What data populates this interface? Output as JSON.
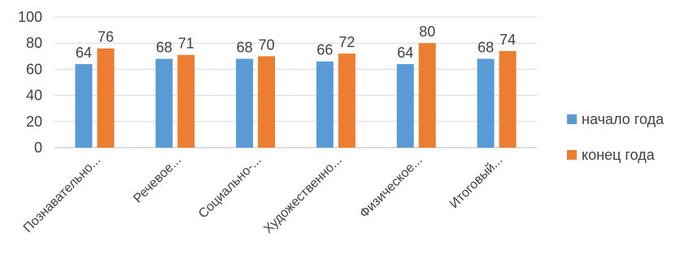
{
  "chart_data": {
    "type": "bar",
    "categories": [
      "Познавательно...",
      "Речевое...",
      "Социально-...",
      "Художественно...",
      "Физическое...",
      "Итоговый..."
    ],
    "series": [
      {
        "name": "начало года",
        "values": [
          64,
          68,
          68,
          66,
          64,
          68
        ],
        "color": "#5B9BD5"
      },
      {
        "name": "конец года",
        "values": [
          76,
          71,
          70,
          72,
          80,
          74
        ],
        "color": "#ED7D31"
      }
    ],
    "ylim": [
      0,
      100
    ],
    "yticks": [
      0,
      20,
      40,
      60,
      80,
      100
    ],
    "grid": true,
    "legend": "right",
    "data_labels": true
  }
}
